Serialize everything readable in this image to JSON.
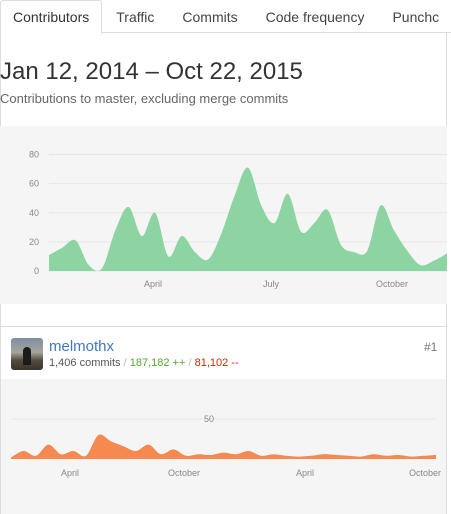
{
  "tabs": [
    {
      "label": "Contributors",
      "active": true
    },
    {
      "label": "Traffic",
      "active": false
    },
    {
      "label": "Commits",
      "active": false
    },
    {
      "label": "Code frequency",
      "active": false
    },
    {
      "label": "Punchc",
      "active": false
    }
  ],
  "header": {
    "title": "Jan 12, 2014 – Oct 22, 2015",
    "subtitle": "Contributions to master, excluding merge commits"
  },
  "chart_data": [
    {
      "type": "area",
      "title": "",
      "series": [
        {
          "values": [
            11,
            16,
            21,
            4,
            2,
            28,
            44,
            24,
            40,
            10,
            24,
            13,
            8,
            26,
            52,
            71,
            45,
            33,
            53,
            27,
            33,
            42,
            18,
            13,
            14,
            45,
            28,
            14,
            4,
            7,
            12
          ]
        }
      ],
      "yticks": [
        0,
        20,
        40,
        60,
        80
      ],
      "ylim": [
        0,
        90
      ],
      "xticks": [
        "April",
        "July",
        "October"
      ],
      "color": "#8cd5a2"
    },
    {
      "type": "area",
      "title": "",
      "series": [
        {
          "values": [
            2,
            10,
            4,
            18,
            6,
            10,
            4,
            30,
            22,
            16,
            10,
            18,
            6,
            12,
            4,
            6,
            5,
            8,
            6,
            10,
            4,
            6,
            4,
            3,
            4,
            6,
            5,
            4,
            3,
            6,
            4,
            5,
            3,
            4,
            5
          ]
        }
      ],
      "yticks": [
        50
      ],
      "ylim": [
        0,
        50
      ],
      "xticks": [
        "April",
        "October",
        "April",
        "October"
      ],
      "color": "#f5894f"
    }
  ],
  "contributor": {
    "username": "melmothx",
    "commits": "1,406 commits",
    "separator": "/",
    "additions": "187,182 ++",
    "deletions": "81,102 --",
    "rank": "#1"
  },
  "icons": {
    "avatar": "user-avatar"
  }
}
